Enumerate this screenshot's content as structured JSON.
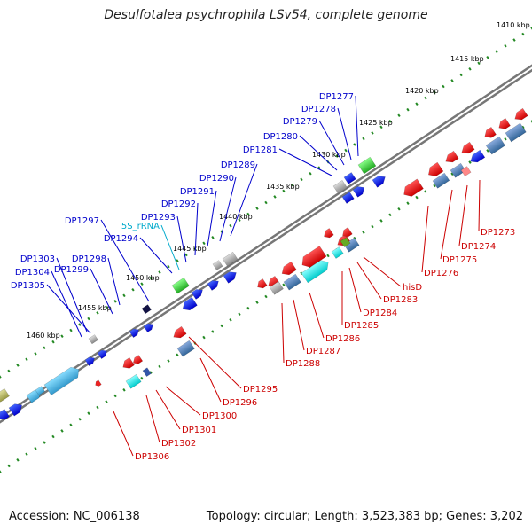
{
  "title": "Desulfotalea psychrophila LSv54, complete genome",
  "footer": {
    "accession": "Accession: NC_006138",
    "summary": "Topology: circular; Length: 3,523,383 bp; Genes: 3,202"
  },
  "colors": {
    "forward_label": "#0000cc",
    "reverse_label": "#cc0000",
    "rna_label": "#00aacc",
    "backbone": "#777777",
    "tick_dot": "#228822"
  },
  "ticks": [
    "1410 kbp",
    "1415 kbp",
    "1420 kbp",
    "1425 kbp",
    "1430 kbp",
    "1435 kbp",
    "1440 kbp",
    "1445 kbp",
    "1450 kbp",
    "1455 kbp",
    "1460 kbp"
  ],
  "forward_labels": [
    "DP1277",
    "DP1278",
    "DP1279",
    "DP1280",
    "DP1281",
    "DP1289",
    "DP1290",
    "DP1291",
    "DP1292",
    "DP1293",
    "5S_rRNA",
    "DP1294",
    "DP1297",
    "DP1298",
    "DP1299",
    "DP1303",
    "DP1304",
    "DP1305"
  ],
  "reverse_labels": [
    "DP1273",
    "DP1274",
    "DP1275",
    "DP1276",
    "hisD",
    "DP1283",
    "DP1284",
    "DP1285",
    "DP1286",
    "DP1287",
    "DP1288",
    "DP1295",
    "DP1296",
    "DP1300",
    "DP1301",
    "DP1302",
    "DP1306"
  ]
}
